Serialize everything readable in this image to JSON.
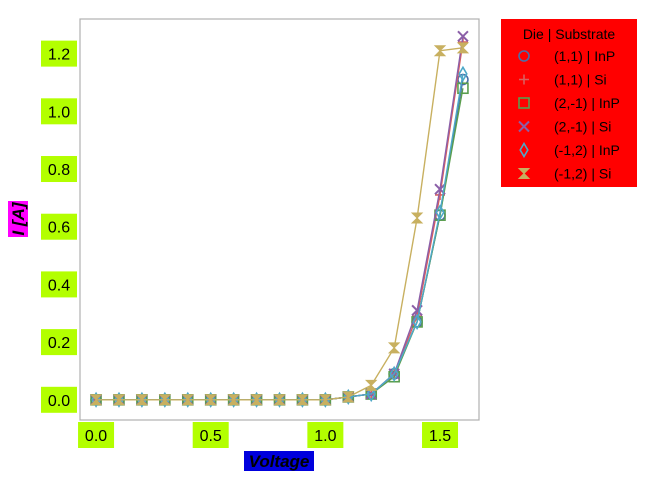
{
  "chart_data": {
    "type": "line",
    "xlabel": "Voltage",
    "ylabel": "I [A]",
    "xlim": [
      -0.07,
      1.67
    ],
    "ylim": [
      -0.07,
      1.32
    ],
    "xticks": [
      0.0,
      0.5,
      1.0,
      1.5
    ],
    "xtick_labels": [
      "0.0",
      "0.5",
      "1.0",
      "1.5"
    ],
    "yticks": [
      0.0,
      0.2,
      0.4,
      0.6,
      0.8,
      1.0,
      1.2
    ],
    "ytick_labels": [
      "0.0",
      "0.2",
      "0.4",
      "0.6",
      "0.8",
      "1.0",
      "1.2"
    ],
    "grid": false,
    "legend_title": "Die | Substrate",
    "legend_position": "outside-top-right",
    "colors": {
      "tick_label_bg": "#b3ff00",
      "xlabel_bg": "#0000dd",
      "ylabel_bg": "#ff00ff",
      "legend_bg": "#ff0000",
      "frame": "#b0b0b0"
    },
    "x": [
      0.0,
      0.1,
      0.2,
      0.3,
      0.4,
      0.5,
      0.6,
      0.7,
      0.8,
      0.9,
      1.0,
      1.1,
      1.2,
      1.3,
      1.4,
      1.5,
      1.6
    ],
    "series": [
      {
        "name": "(1,1) | InP",
        "marker": "circle",
        "color": "#4a6fa8",
        "values": [
          0,
          0,
          0,
          0,
          0,
          0,
          0,
          0,
          0,
          0,
          0,
          0.01,
          0.02,
          0.09,
          0.27,
          0.64,
          1.11
        ]
      },
      {
        "name": "(1,1) | Si",
        "marker": "plus",
        "color": "#d95f5f",
        "values": [
          0,
          0,
          0,
          0,
          0,
          0,
          0,
          0,
          0,
          0,
          0,
          0.01,
          0.02,
          0.09,
          0.29,
          0.71,
          1.24
        ]
      },
      {
        "name": "(2,-1) | InP",
        "marker": "square",
        "color": "#5a9e4e",
        "values": [
          0,
          0,
          0,
          0,
          0,
          0,
          0,
          0,
          0,
          0,
          0,
          0.01,
          0.02,
          0.08,
          0.27,
          0.64,
          1.08
        ]
      },
      {
        "name": "(2,-1) | Si",
        "marker": "x",
        "color": "#8b5fa8",
        "values": [
          0,
          0,
          0,
          0,
          0,
          0,
          0,
          0,
          0,
          0,
          0,
          0.01,
          0.02,
          0.09,
          0.31,
          0.73,
          1.26
        ]
      },
      {
        "name": "(-1,2) | InP",
        "marker": "diamond",
        "color": "#4da8c8",
        "values": [
          0,
          0,
          0,
          0,
          0,
          0,
          0,
          0,
          0,
          0,
          0,
          0.01,
          0.02,
          0.09,
          0.27,
          0.65,
          1.13
        ]
      },
      {
        "name": "(-1,2) | Si",
        "marker": "hourglass",
        "color": "#c8b060",
        "values": [
          0,
          0,
          0,
          0,
          0,
          0,
          0,
          0,
          0,
          0,
          0,
          0.01,
          0.05,
          0.18,
          0.63,
          1.21,
          1.22
        ]
      }
    ]
  }
}
